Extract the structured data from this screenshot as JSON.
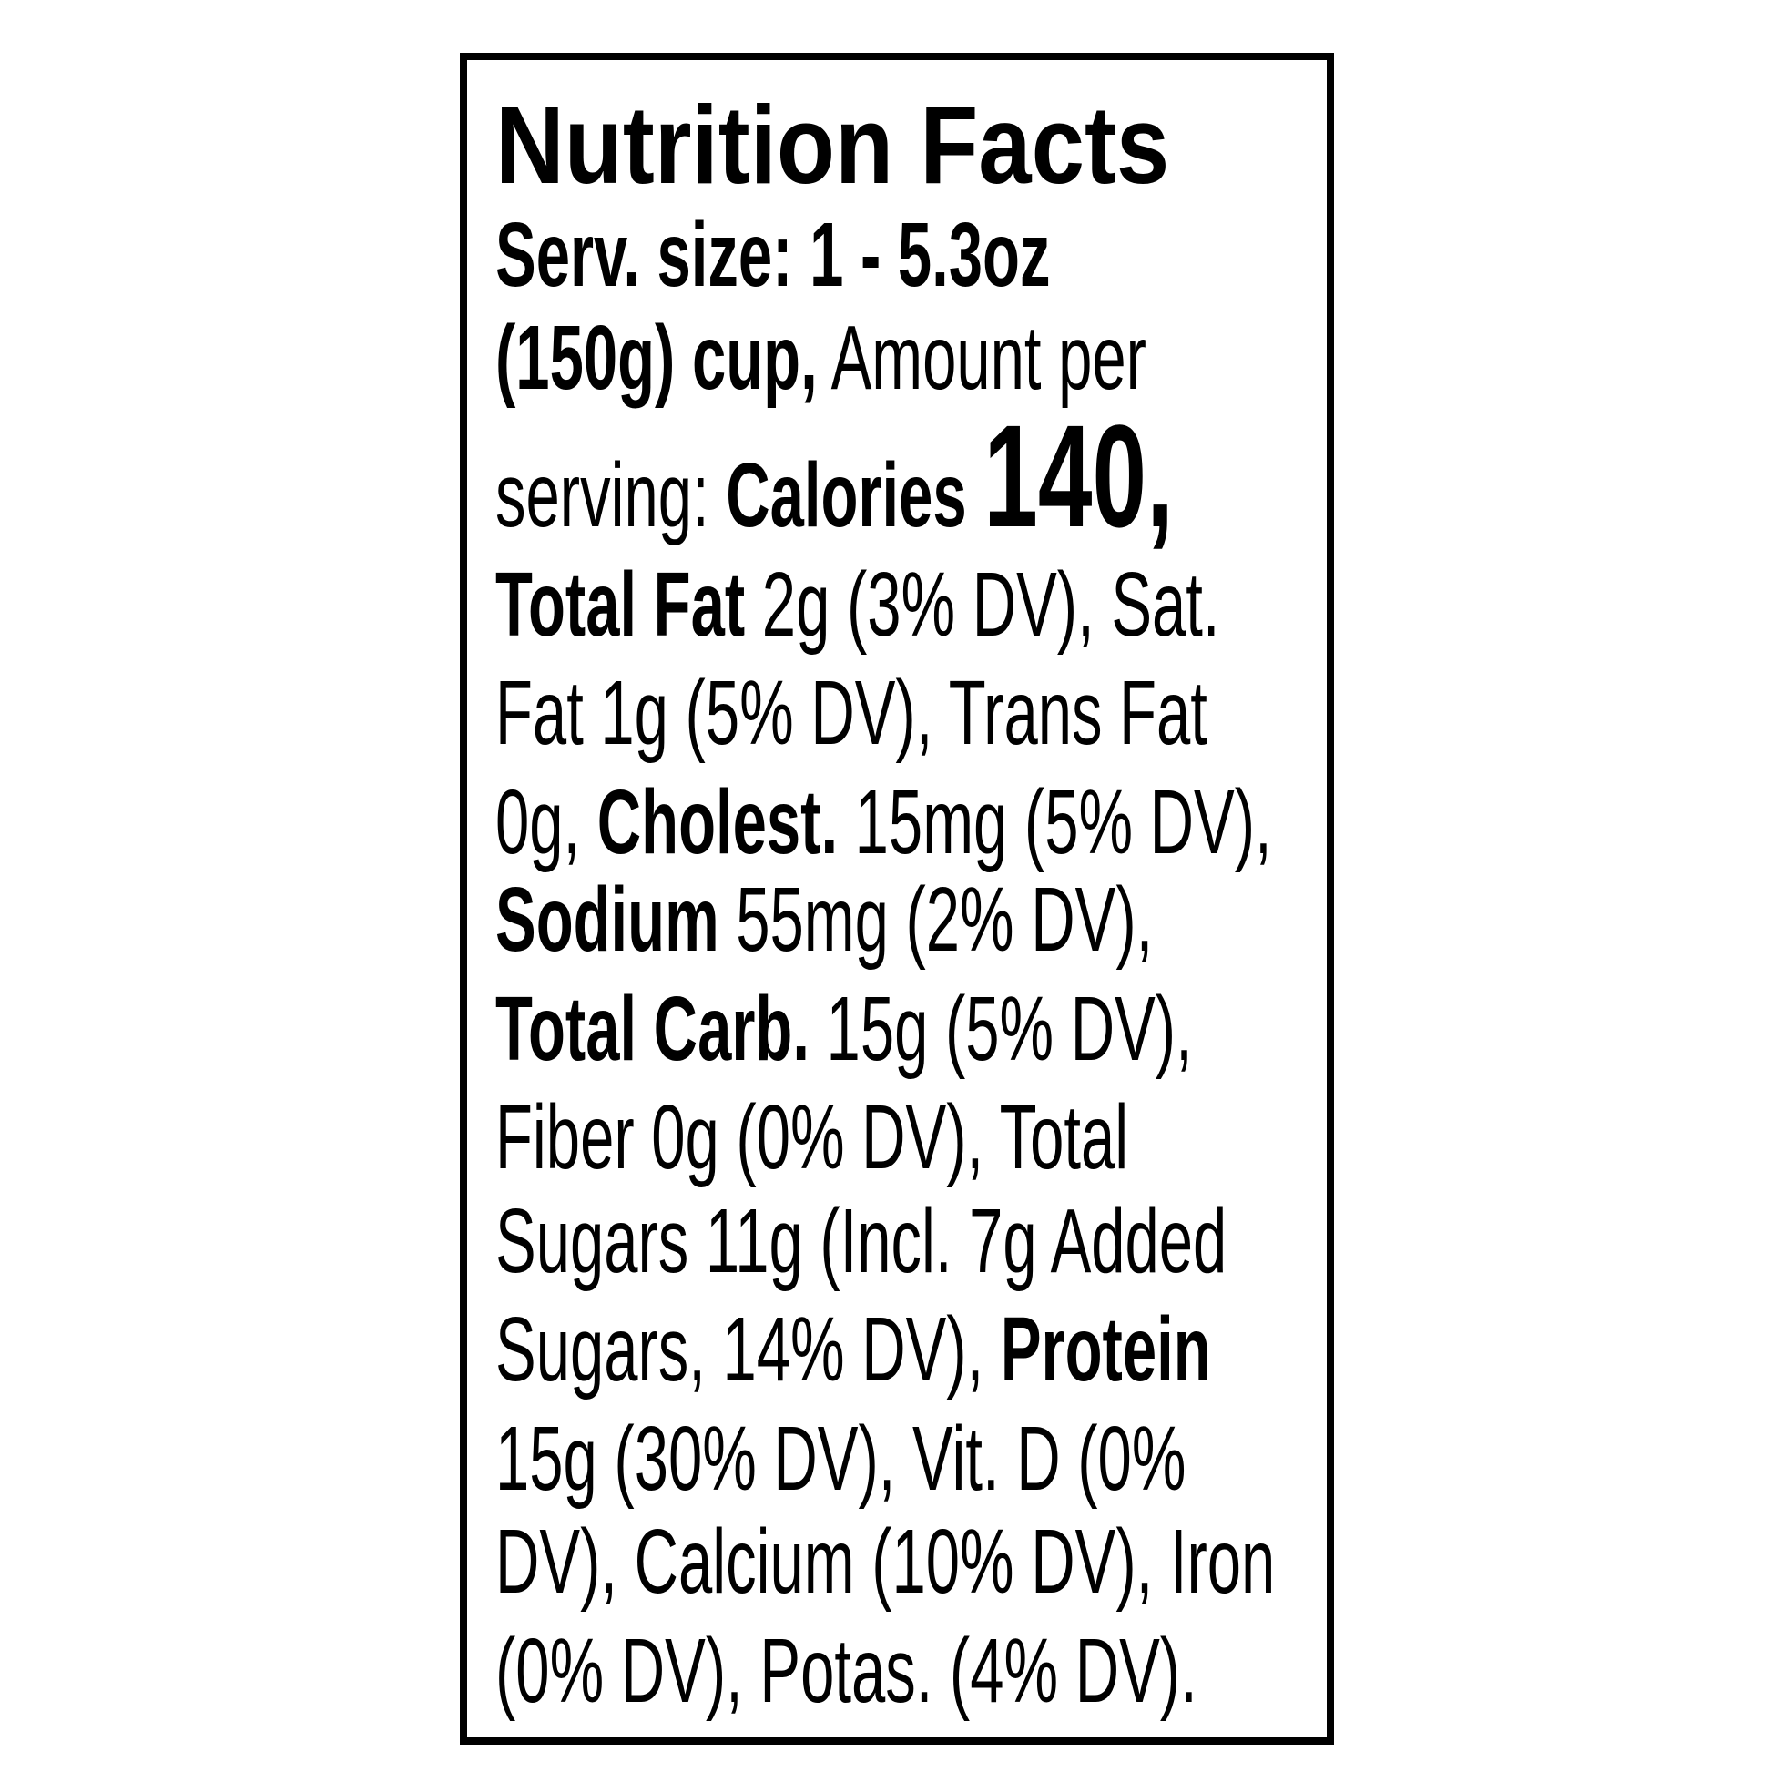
{
  "label": {
    "title": "Nutrition Facts",
    "lines": [
      [
        {
          "t": "Serv. size: 1 - 5.3oz",
          "b": true
        }
      ],
      [
        {
          "t": "(150g) cup,",
          "b": true
        },
        {
          "t": " Amount per",
          "b": false
        }
      ],
      [
        {
          "t": "serving: ",
          "b": false
        },
        {
          "t": "Calories ",
          "b": true
        },
        {
          "t": "140,",
          "b": "big"
        }
      ],
      [
        {
          "t": "Total Fat",
          "b": true
        },
        {
          "t": " 2g (3% DV), Sat.",
          "b": false
        }
      ],
      [
        {
          "t": "Fat 1g (5% DV), Trans Fat",
          "b": false
        }
      ],
      [
        {
          "t": "0g, ",
          "b": false
        },
        {
          "t": "Cholest.",
          "b": true
        },
        {
          "t": " 15mg (5% DV),",
          "b": false
        }
      ],
      [
        {
          "t": "Sodium",
          "b": true
        },
        {
          "t": " 55mg (2% DV),",
          "b": false
        }
      ],
      [
        {
          "t": "Total Carb.",
          "b": true
        },
        {
          "t": " 15g (5% DV),",
          "b": false
        }
      ],
      [
        {
          "t": "Fiber 0g (0% DV), Total",
          "b": false
        }
      ],
      [
        {
          "t": "Sugars 11g (Incl. 7g Added",
          "b": false
        }
      ],
      [
        {
          "t": "Sugars, 14% DV), ",
          "b": false
        },
        {
          "t": "Protein",
          "b": true
        }
      ],
      [
        {
          "t": "15g (30% DV), Vit. D (0%",
          "b": false
        }
      ],
      [
        {
          "t": "DV), Calcium (10% DV), Iron",
          "b": false
        }
      ],
      [
        {
          "t": "(0% DV), Potas. (4% DV).",
          "b": false
        }
      ]
    ]
  }
}
